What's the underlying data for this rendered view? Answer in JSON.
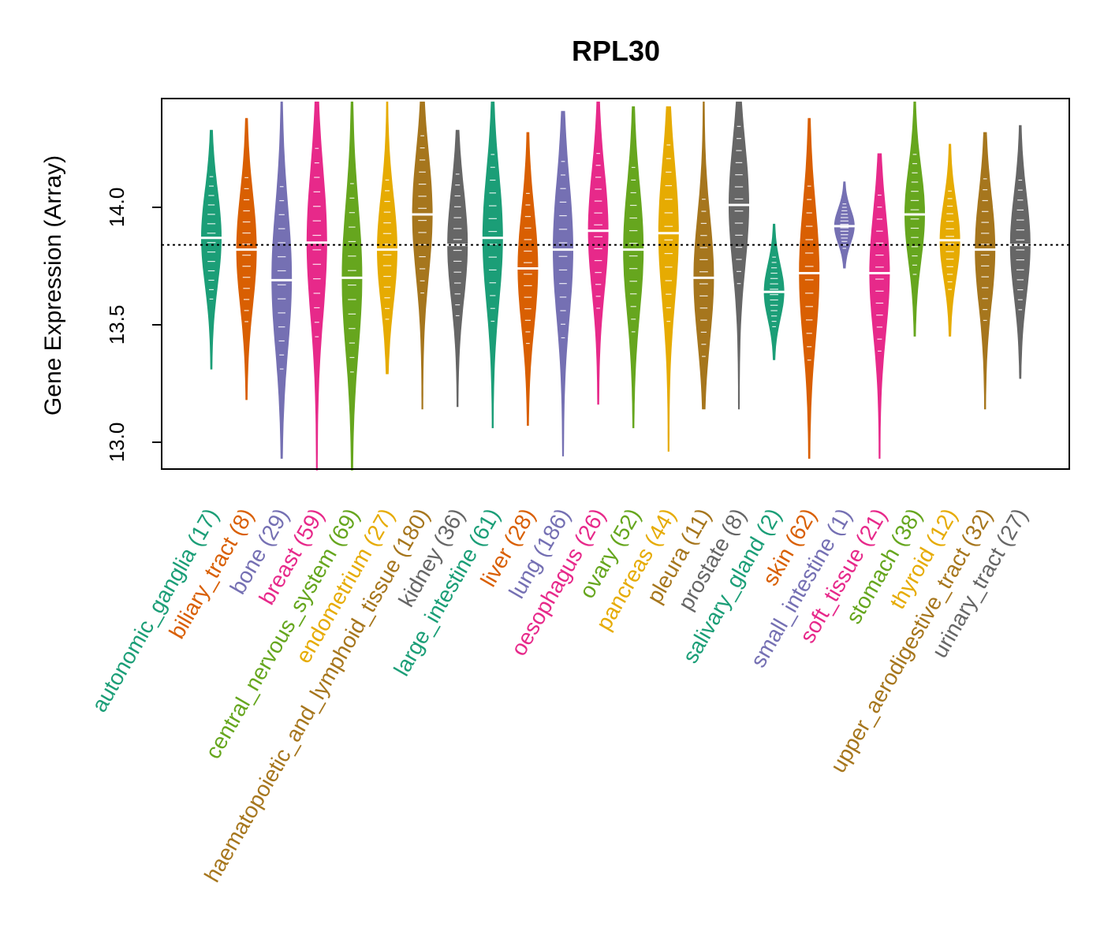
{
  "chart_data": {
    "type": "violin",
    "title": "RPL30",
    "xlabel": "",
    "ylabel": "Gene Expression (Array)",
    "ylim": [
      12.88,
      14.45
    ],
    "yticks": [
      13.0,
      13.5,
      14.0
    ],
    "ytick_labels": [
      "13.0",
      "13.5",
      "14.0"
    ],
    "reference_line": 13.84,
    "categories": [
      {
        "name": "autonomic_ganglia",
        "count": "(17)",
        "color": "#1B9E77",
        "min": 13.31,
        "max": 14.33,
        "median": 13.87,
        "center": 13.87
      },
      {
        "name": "biliary_tract",
        "count": "(8)",
        "color": "#D95F02",
        "min": 13.18,
        "max": 14.38,
        "median": 13.82,
        "center": 13.82
      },
      {
        "name": "bone",
        "count": "(29)",
        "color": "#7570B3",
        "min": 12.93,
        "max": 14.45,
        "median": 13.69,
        "center": 13.7
      },
      {
        "name": "breast",
        "count": "(59)",
        "color": "#E7298A",
        "min": 12.88,
        "max": 14.45,
        "median": 13.85,
        "center": 13.85
      },
      {
        "name": "central_nervous_system",
        "count": "(69)",
        "color": "#66A61E",
        "min": 12.88,
        "max": 14.45,
        "median": 13.7,
        "center": 13.7
      },
      {
        "name": "endometrium",
        "count": "(27)",
        "color": "#E6AB02",
        "min": 13.29,
        "max": 14.45,
        "median": 13.82,
        "center": 13.82
      },
      {
        "name": "haematopoietic_and_lymphoid_tissue",
        "count": "(180)",
        "color": "#A6761D",
        "min": 13.14,
        "max": 14.45,
        "median": 13.97,
        "center": 13.97
      },
      {
        "name": "kidney",
        "count": "(36)",
        "color": "#666666",
        "min": 13.15,
        "max": 14.33,
        "median": 13.84,
        "center": 13.84
      },
      {
        "name": "large_intestine",
        "count": "(61)",
        "color": "#1B9E77",
        "min": 13.06,
        "max": 14.45,
        "median": 13.87,
        "center": 13.87
      },
      {
        "name": "liver",
        "count": "(28)",
        "color": "#D95F02",
        "min": 13.07,
        "max": 14.32,
        "median": 13.74,
        "center": 13.74
      },
      {
        "name": "lung",
        "count": "(186)",
        "color": "#7570B3",
        "min": 12.94,
        "max": 14.41,
        "median": 13.82,
        "center": 13.82
      },
      {
        "name": "oesophagus",
        "count": "(26)",
        "color": "#E7298A",
        "min": 13.16,
        "max": 14.45,
        "median": 13.9,
        "center": 13.9
      },
      {
        "name": "ovary",
        "count": "(52)",
        "color": "#66A61E",
        "min": 13.06,
        "max": 14.43,
        "median": 13.82,
        "center": 13.82
      },
      {
        "name": "pancreas",
        "count": "(44)",
        "color": "#E6AB02",
        "min": 12.96,
        "max": 14.43,
        "median": 13.89,
        "center": 13.89
      },
      {
        "name": "pleura",
        "count": "(11)",
        "color": "#A6761D",
        "min": 13.14,
        "max": 14.45,
        "median": 13.7,
        "center": 13.7
      },
      {
        "name": "prostate",
        "count": "(8)",
        "color": "#666666",
        "min": 13.14,
        "max": 14.45,
        "median": 14.01,
        "center": 14.01
      },
      {
        "name": "salivary_gland",
        "count": "(2)",
        "color": "#1B9E77",
        "min": 13.35,
        "max": 13.93,
        "median": 13.64,
        "center": 13.64
      },
      {
        "name": "skin",
        "count": "(62)",
        "color": "#D95F02",
        "min": 12.93,
        "max": 14.38,
        "median": 13.72,
        "center": 13.72
      },
      {
        "name": "small_intestine",
        "count": "(1)",
        "color": "#7570B3",
        "min": 13.74,
        "max": 14.11,
        "median": 13.92,
        "center": 13.92
      },
      {
        "name": "soft_tissue",
        "count": "(21)",
        "color": "#E7298A",
        "min": 12.93,
        "max": 14.23,
        "median": 13.72,
        "center": 13.72
      },
      {
        "name": "stomach",
        "count": "(38)",
        "color": "#66A61E",
        "min": 13.45,
        "max": 14.45,
        "median": 13.97,
        "center": 13.97
      },
      {
        "name": "thyroid",
        "count": "(12)",
        "color": "#E6AB02",
        "min": 13.45,
        "max": 14.27,
        "median": 13.86,
        "center": 13.86
      },
      {
        "name": "upper_aerodigestive_tract",
        "count": "(32)",
        "color": "#A6761D",
        "min": 13.14,
        "max": 14.32,
        "median": 13.82,
        "center": 13.82
      },
      {
        "name": "urinary_tract",
        "count": "(27)",
        "color": "#666666",
        "min": 13.27,
        "max": 14.35,
        "median": 13.84,
        "center": 13.84
      }
    ]
  }
}
